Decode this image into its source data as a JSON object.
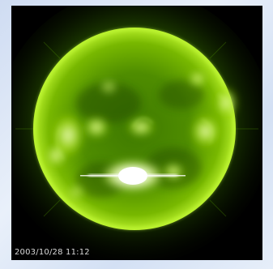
{
  "image": {
    "timestamp": "2003/10/28 11:12",
    "colors": {
      "background": "#000000",
      "sun_core": "#4d8f00",
      "sun_edge": "#9fdc00",
      "corona": "#3f7a00",
      "flare": "#ffffff"
    }
  }
}
